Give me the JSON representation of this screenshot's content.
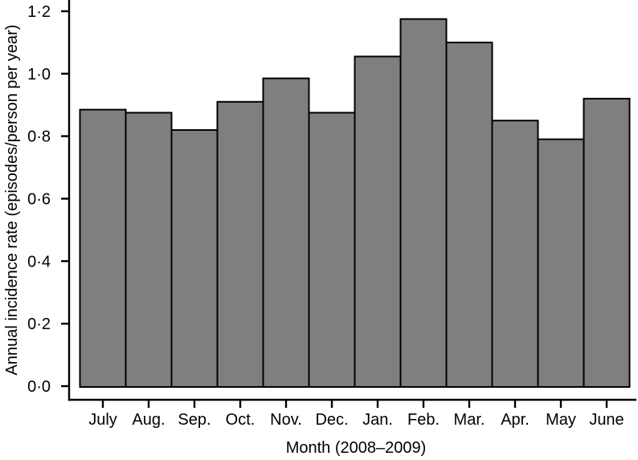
{
  "chart_data": {
    "type": "bar",
    "xlabel": "Month (2008–2009)",
    "ylabel": "Annual incidence rate (episodes/person per year)",
    "categories": [
      "July",
      "Aug.",
      "Sep.",
      "Oct.",
      "Nov.",
      "Dec.",
      "Jan.",
      "Feb.",
      "Mar.",
      "Apr.",
      "May",
      "June"
    ],
    "values": [
      0.885,
      0.875,
      0.82,
      0.91,
      0.985,
      0.875,
      1.055,
      1.175,
      1.1,
      0.85,
      0.79,
      0.92
    ],
    "ylim": [
      0,
      1.2
    ],
    "yticks": [
      0,
      0.2,
      0.4,
      0.6,
      0.8,
      1.0,
      1.2
    ],
    "ytick_labels": [
      "0·0",
      "0·2",
      "0·4",
      "0·6",
      "0·8",
      "1·0",
      "1·2"
    ],
    "decimal_separator": "·",
    "grid": false,
    "legend_position": "none",
    "bars_adjacent": true,
    "bar_fill": "#7f7f7f",
    "bar_stroke": "#000000",
    "axis_color": "#000000",
    "background_color": "#ffffff"
  }
}
